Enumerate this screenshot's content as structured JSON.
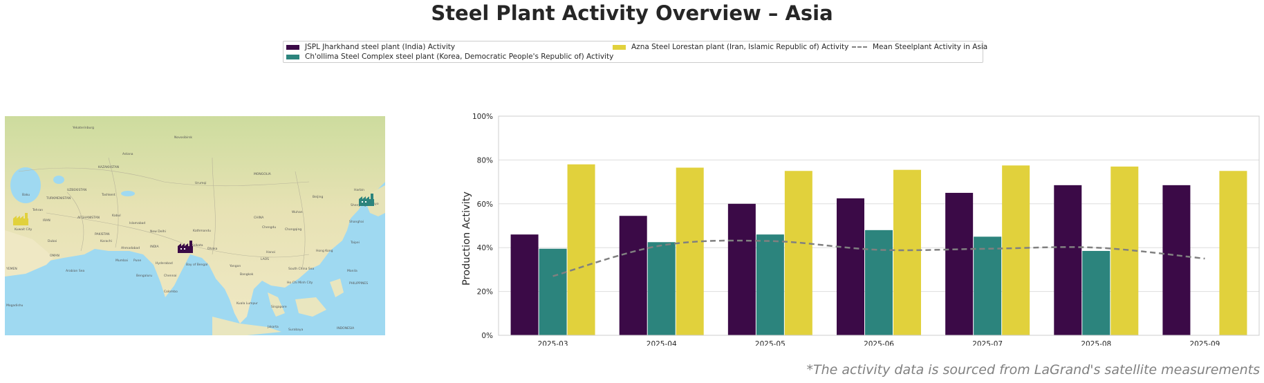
{
  "title": "Steel Plant Activity Overview – Asia",
  "footnote": "*The activity data is sourced from LaGrand's satellite measurements",
  "legend": {
    "items": [
      {
        "label": "JSPL Jharkhand steel plant (India) Activity",
        "color": "#3b0a47"
      },
      {
        "label": "Ch'ollima Steel Complex steel plant (Korea, Democratic People's Republic of) Activity",
        "color": "#2c847d"
      },
      {
        "label": "Azna Steel Lorestan plant (Iran, Islamic Republic of) Activity",
        "color": "#e1d13c"
      },
      {
        "label": "Mean Steelplant Activity in Asia",
        "color": "#808080"
      }
    ]
  },
  "map": {
    "icons": [
      "factory-icon-iran",
      "factory-icon-india",
      "factory-icon-korea"
    ],
    "icon_colors": [
      "#e1d13c",
      "#3b0a47",
      "#2c847d"
    ],
    "labels": [
      "Yekaterinburg",
      "Novosibirsk",
      "Astana",
      "KAZAKHSTAN",
      "MONGOLIA",
      "Urumqi",
      "Harbin",
      "Shenyang",
      "Beijing",
      "Tashkent",
      "TURKMENISTAN",
      "UZBEKISTAN",
      "Tehran",
      "IRAN",
      "AFGHANISTAN",
      "Kabul",
      "Islamabad",
      "PAKISTAN",
      "Karachi",
      "CHINA",
      "Chengdu",
      "Chongqing",
      "Wuhan",
      "Shanghai",
      "New Delhi",
      "Kathmandu",
      "INDIA",
      "Ahmadabad",
      "Mumbai",
      "Pune",
      "Hyderabad",
      "Bengaluru",
      "Chennai",
      "Colombo",
      "Dhaka",
      "Kolkata",
      "Yangon",
      "Bangkok",
      "Hanoi",
      "Hong Kong",
      "Taipei",
      "Manila",
      "Ho Chi Minh City",
      "Kuala Lumpur",
      "Singapore",
      "Jakarta",
      "Surabaya",
      "Kuwait City",
      "Dubai",
      "OMAN",
      "YEMEN",
      "Baku",
      "Arabian Sea",
      "Bay of Bengal",
      "South China Sea",
      "PHILIPPINES",
      "INDONESIA",
      "LAOS",
      "Mogadishu",
      "Tokyo"
    ]
  },
  "chart_data": {
    "type": "bar",
    "categories": [
      "2025-03",
      "2025-04",
      "2025-05",
      "2025-06",
      "2025-07",
      "2025-08",
      "2025-09"
    ],
    "series": [
      {
        "name": "JSPL Jharkhand steel plant (India) Activity",
        "color": "#3b0a47",
        "values": [
          46,
          54.5,
          60,
          62.5,
          65,
          68.5,
          68.5
        ]
      },
      {
        "name": "Ch'ollima Steel Complex steel plant (Korea, Democratic People's Republic of) Activity",
        "color": "#2c847d",
        "values": [
          39.5,
          42.5,
          46,
          48,
          45,
          38.5,
          null
        ]
      },
      {
        "name": "Azna Steel Lorestan plant (Iran, Islamic Republic of) Activity",
        "color": "#e1d13c",
        "values": [
          78,
          76.5,
          75,
          75.5,
          77.5,
          77,
          75
        ]
      }
    ],
    "mean_line": {
      "name": "Mean Steelplant Activity in Asia",
      "color": "#808080",
      "style": "dashed",
      "values": [
        27,
        41,
        43,
        39,
        39.5,
        40,
        35
      ]
    },
    "ylabel": "Production Activity",
    "xlabel": "",
    "ylim": [
      0,
      100
    ],
    "yticks": [
      0,
      20,
      40,
      60,
      80,
      100
    ],
    "ytick_labels": [
      "0%",
      "20%",
      "40%",
      "60%",
      "80%",
      "100%"
    ],
    "grid": true,
    "legend_position": "top-center"
  }
}
